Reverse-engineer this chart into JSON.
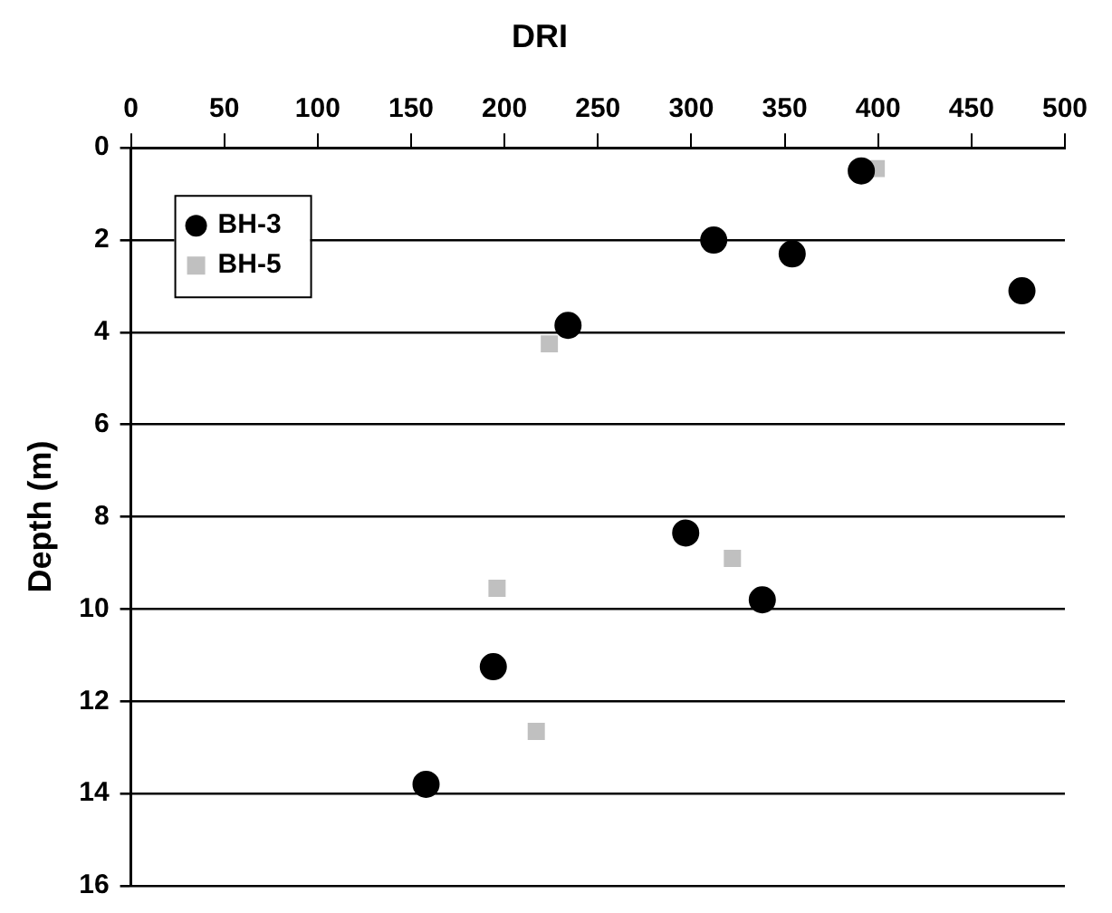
{
  "chart_data": {
    "type": "scatter",
    "title": "DRI",
    "ylabel": "Depth (m)",
    "xlim": [
      0,
      500
    ],
    "xticks": [
      0,
      50,
      100,
      150,
      200,
      250,
      300,
      350,
      400,
      450,
      500
    ],
    "ylim": [
      16,
      0
    ],
    "yticks": [
      0,
      2,
      4,
      6,
      8,
      10,
      12,
      14,
      16
    ],
    "grid": "y",
    "legend": "top left",
    "series": [
      {
        "name": "BH-3",
        "color": "#000000",
        "marker": "circle",
        "x": [
          391,
          312,
          354,
          477,
          234,
          297,
          338,
          194,
          158
        ],
        "values": [
          0.5,
          2.0,
          2.3,
          3.1,
          3.85,
          8.35,
          9.8,
          11.25,
          13.8
        ]
      },
      {
        "name": "BH-5",
        "color": "#c0c0c0",
        "marker": "square",
        "x": [
          399,
          224,
          322,
          196,
          217
        ],
        "values": [
          0.45,
          4.25,
          8.9,
          9.55,
          12.65
        ]
      }
    ]
  }
}
